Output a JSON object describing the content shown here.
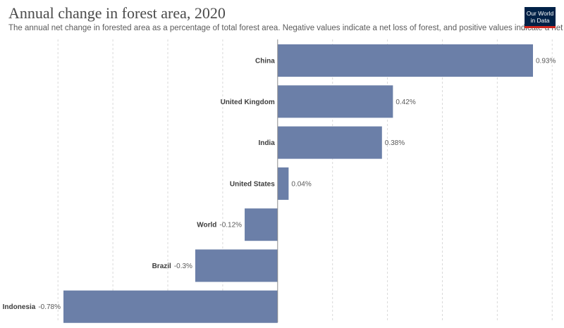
{
  "header": {
    "title": "Annual change in forest area, 2020",
    "subtitle": "The annual net change in forested area as a percentage of total forest area. Negative values indicate a net loss of forest, and positive values indicate a net gain."
  },
  "logo": {
    "line1": "Our World",
    "line2": "in Data",
    "bg_color": "#002147",
    "accent_color": "#ce261e"
  },
  "chart_data": {
    "type": "bar",
    "orientation": "horizontal",
    "title": "Annual change in forest area, 2020",
    "xlabel": "",
    "ylabel": "",
    "unit": "%",
    "xlim": [
      -0.78,
      0.93
    ],
    "grid": true,
    "bar_color": "#6b7fa8",
    "categories": [
      "China",
      "United Kingdom",
      "India",
      "United States",
      "World",
      "Brazil",
      "Indonesia"
    ],
    "values": [
      0.93,
      0.42,
      0.38,
      0.04,
      -0.12,
      -0.3,
      -0.78
    ],
    "value_labels": [
      "0.93%",
      "0.42%",
      "0.38%",
      "0.04%",
      "-0.12%",
      "-0.3%",
      "-0.78%"
    ]
  }
}
